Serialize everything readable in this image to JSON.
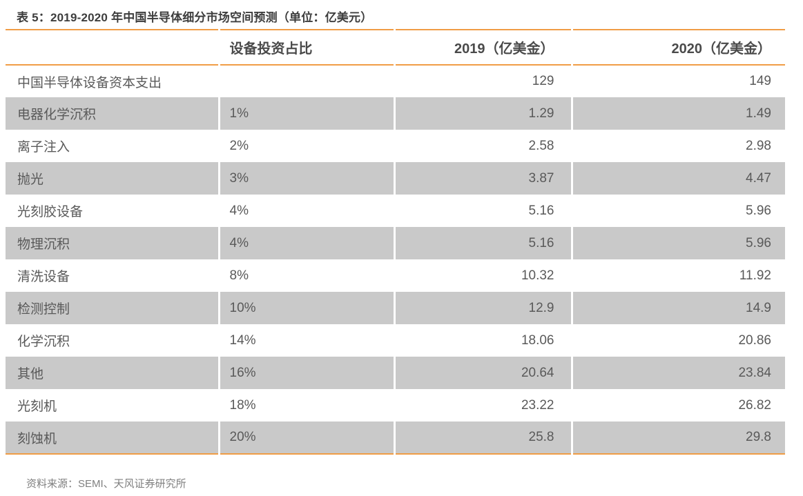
{
  "page": {
    "title": "表 5：2019-2020 年中国半导体细分市场空间预测（单位：亿美元）",
    "source_note": "资料来源：SEMI、天风证券研究所"
  },
  "colors": {
    "accent_orange": "#F09C45",
    "row_shade_gray": "#C9C9C9",
    "title_text": "#3d3d3d",
    "cell_text": "#595959",
    "source_text": "#7f7f7f"
  },
  "table": {
    "columns": [
      {
        "label": ""
      },
      {
        "label": "设备投资占比"
      },
      {
        "label": "2019（亿美金）"
      },
      {
        "label": "2020（亿美金）"
      }
    ],
    "rows": [
      {
        "label": "中国半导体设备资本支出",
        "share": "",
        "y2019": "129",
        "y2020": "149"
      },
      {
        "label": "电器化学沉积",
        "share": "1%",
        "y2019": "1.29",
        "y2020": "1.49"
      },
      {
        "label": "离子注入",
        "share": "2%",
        "y2019": "2.58",
        "y2020": "2.98"
      },
      {
        "label": "抛光",
        "share": "3%",
        "y2019": "3.87",
        "y2020": "4.47"
      },
      {
        "label": "光刻胶设备",
        "share": "4%",
        "y2019": "5.16",
        "y2020": "5.96"
      },
      {
        "label": "物理沉积",
        "share": "4%",
        "y2019": "5.16",
        "y2020": "5.96"
      },
      {
        "label": "清洗设备",
        "share": "8%",
        "y2019": "10.32",
        "y2020": "11.92"
      },
      {
        "label": "检测控制",
        "share": "10%",
        "y2019": "12.9",
        "y2020": "14.9"
      },
      {
        "label": "化学沉积",
        "share": "14%",
        "y2019": "18.06",
        "y2020": "20.86"
      },
      {
        "label": "其他",
        "share": "16%",
        "y2019": "20.64",
        "y2020": "23.84"
      },
      {
        "label": "光刻机",
        "share": "18%",
        "y2019": "23.22",
        "y2020": "26.82"
      },
      {
        "label": "刻蚀机",
        "share": "20%",
        "y2019": "25.8",
        "y2020": "29.8"
      }
    ]
  }
}
